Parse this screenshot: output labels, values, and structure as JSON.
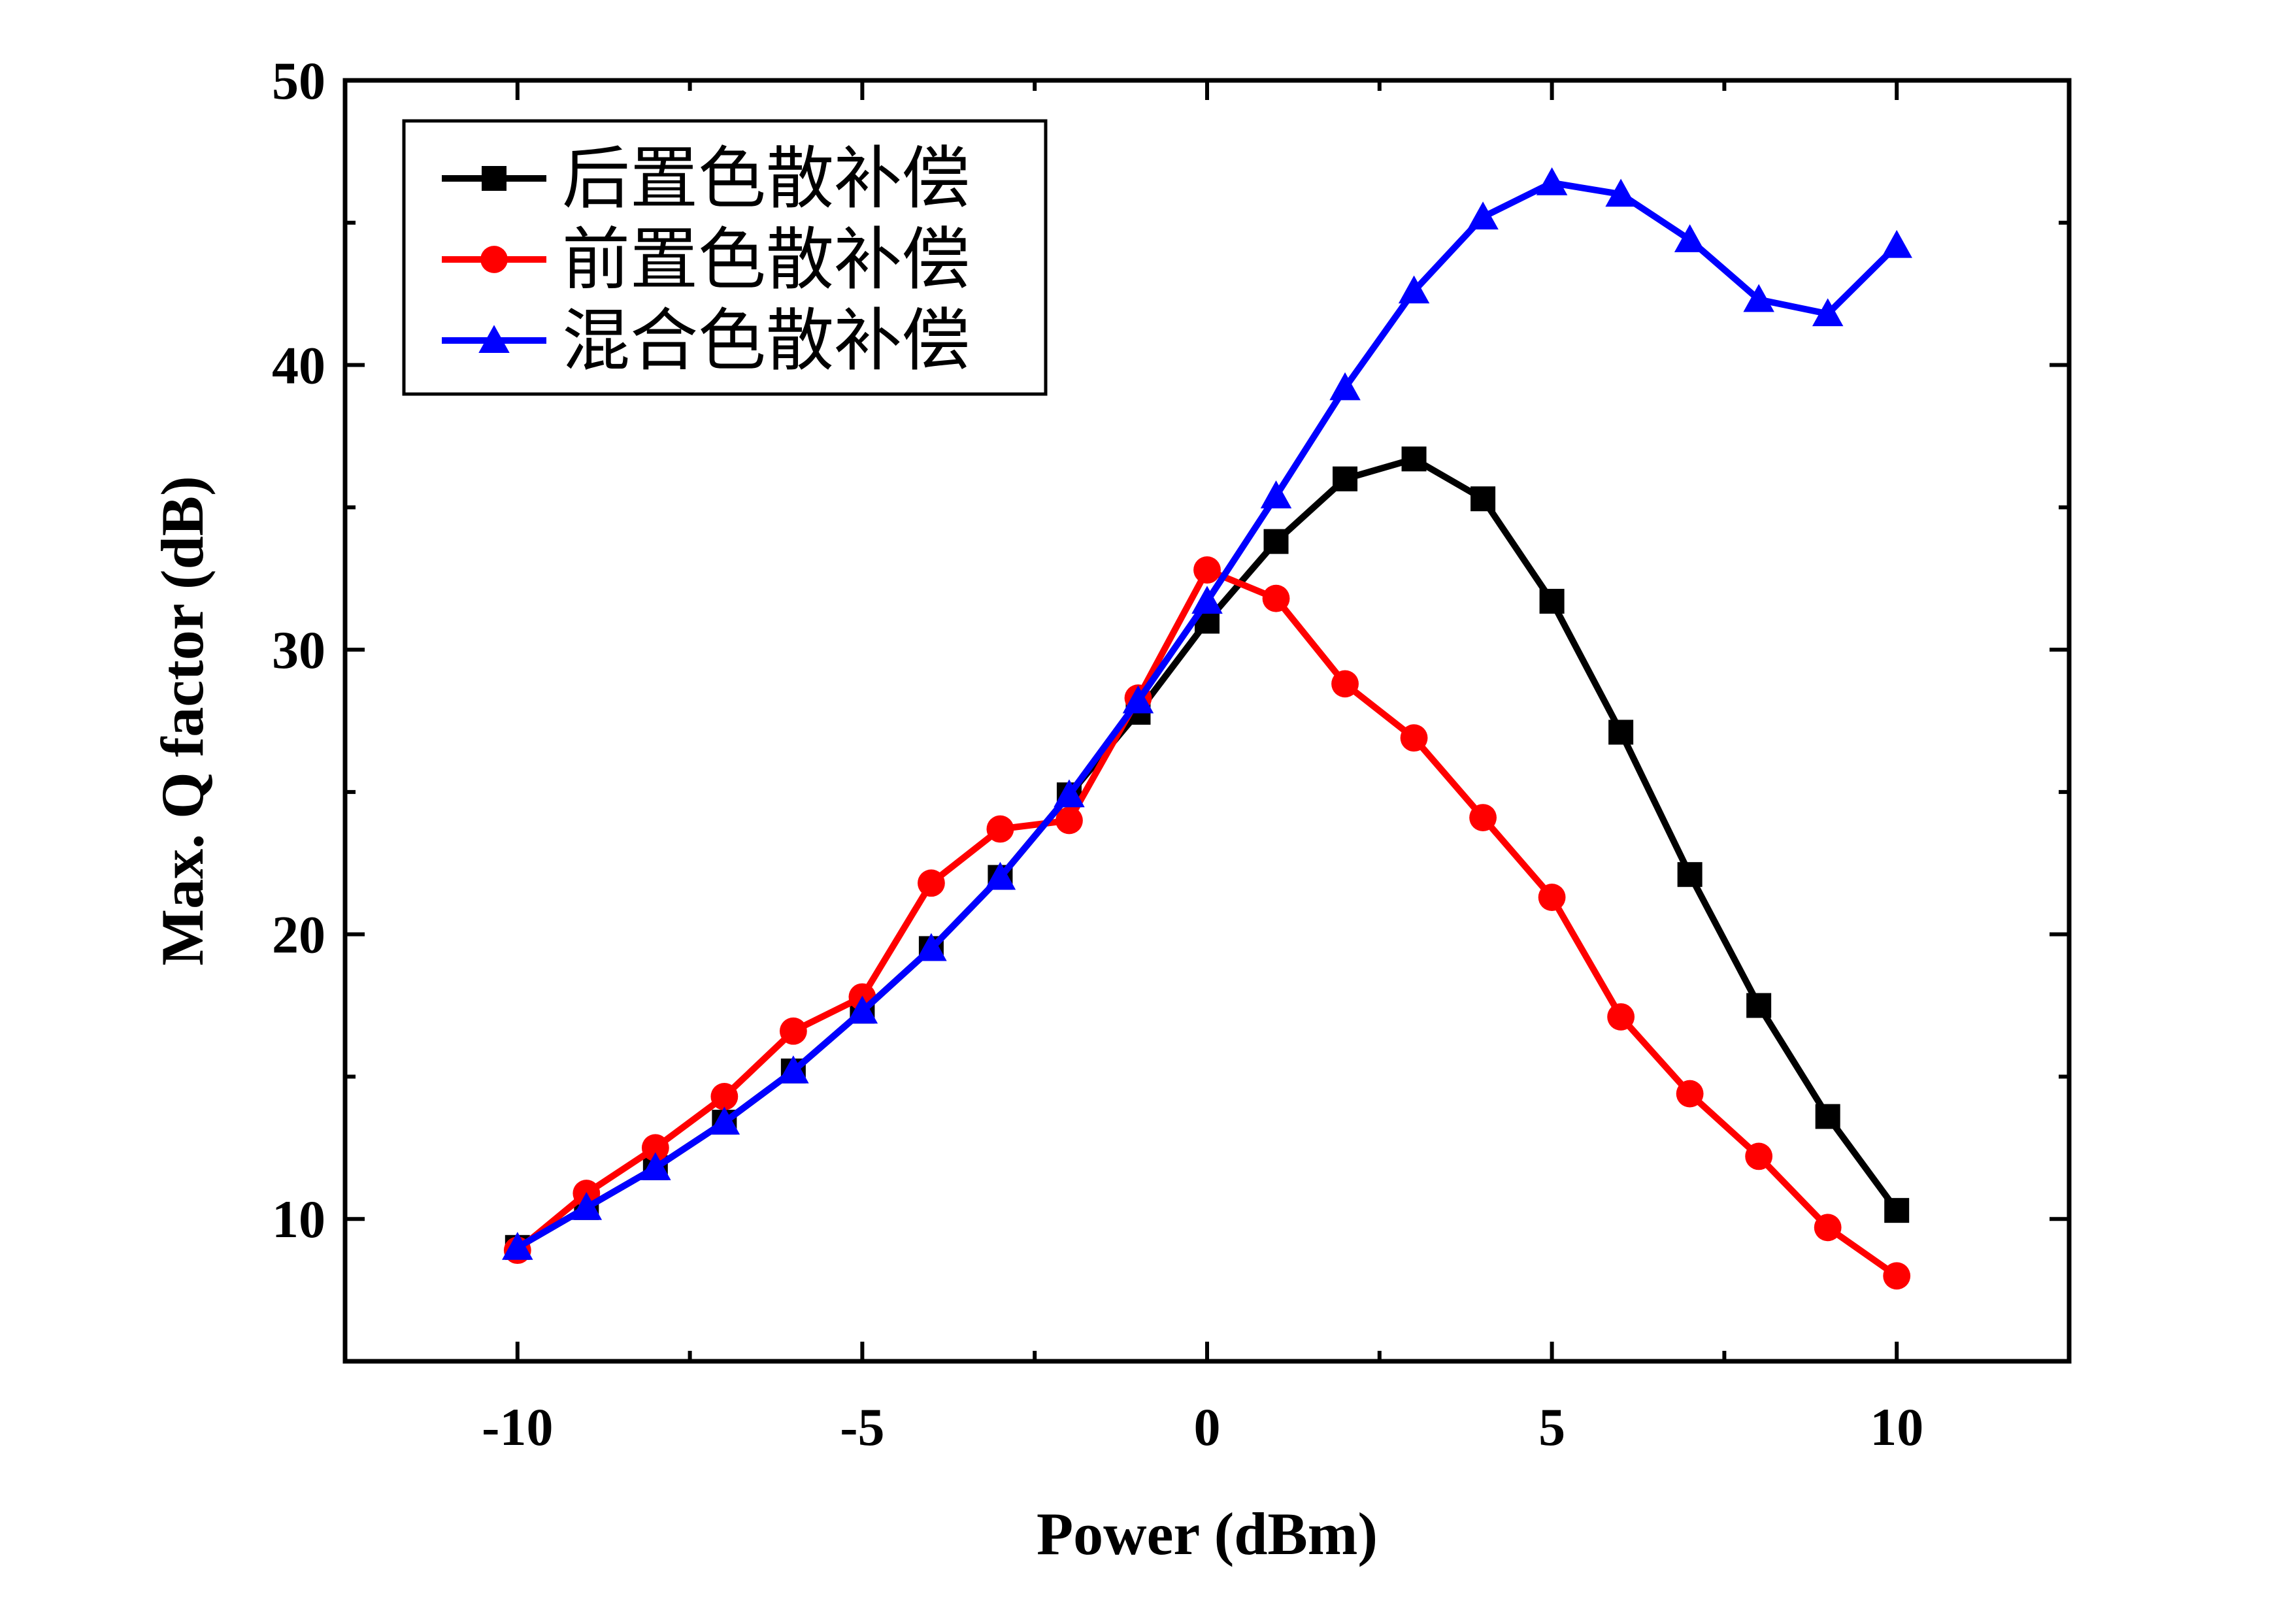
{
  "chart_data": {
    "type": "line",
    "title": "",
    "xlabel": "Power (dBm)",
    "ylabel": "Max. Q factor (dB)",
    "xlim": [
      -12.5,
      12.5
    ],
    "ylim": [
      5,
      50
    ],
    "x_ticks": [
      -10,
      -5,
      0,
      5,
      10
    ],
    "x_tick_labels": [
      "-10",
      "-5",
      "0",
      "5",
      "10"
    ],
    "y_ticks": [
      10,
      20,
      30,
      40,
      50
    ],
    "y_tick_labels": [
      "10",
      "20",
      "30",
      "40",
      "50"
    ],
    "x_minor_ticks": [
      -12.5,
      -7.5,
      -2.5,
      2.5,
      7.5,
      12.5
    ],
    "y_minor_ticks": [
      15,
      25,
      35,
      45
    ],
    "grid": false,
    "legend_position": "top-left",
    "x": [
      -10,
      -9,
      -8,
      -7,
      -6,
      -5,
      -4,
      -3,
      -2,
      -1,
      0,
      1,
      2,
      3,
      4,
      5,
      6,
      7,
      8,
      9,
      10
    ],
    "series": [
      {
        "name": "后置色散补偿",
        "color": "#000000",
        "marker": "square",
        "values": [
          9.0,
          10.4,
          11.8,
          13.4,
          15.2,
          17.3,
          19.5,
          22.0,
          24.9,
          27.8,
          31.0,
          33.8,
          36.0,
          36.7,
          35.3,
          31.7,
          27.1,
          22.1,
          17.5,
          13.6,
          10.3
        ]
      },
      {
        "name": "前置色散补偿",
        "color": "#ff0000",
        "marker": "circle",
        "values": [
          8.9,
          10.9,
          12.5,
          14.3,
          16.6,
          17.8,
          21.8,
          23.7,
          24.0,
          28.3,
          32.8,
          31.8,
          28.8,
          26.9,
          24.1,
          21.3,
          17.1,
          14.4,
          12.2,
          9.7,
          8.0
        ]
      },
      {
        "name": "混合色散补偿",
        "color": "#0000ff",
        "marker": "triangle",
        "values": [
          9.0,
          10.4,
          11.8,
          13.4,
          15.2,
          17.3,
          19.5,
          22.0,
          24.9,
          28.2,
          31.7,
          35.4,
          39.2,
          42.6,
          45.2,
          46.4,
          46.0,
          44.4,
          42.3,
          41.8,
          44.2
        ]
      }
    ]
  }
}
